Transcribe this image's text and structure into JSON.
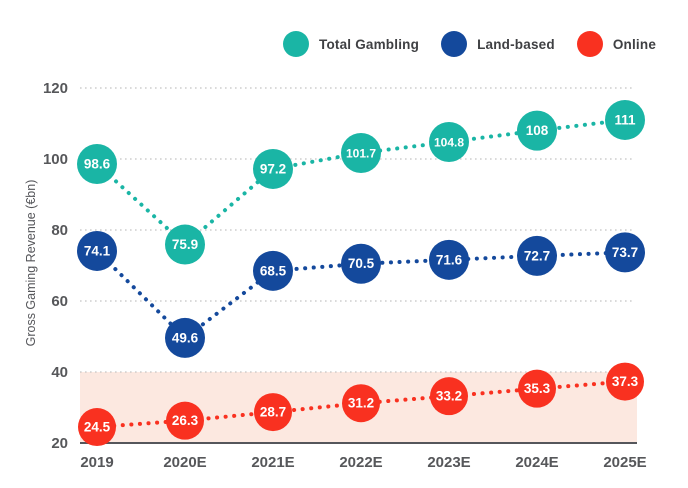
{
  "chart_data": {
    "type": "line",
    "title": "",
    "xlabel": "",
    "ylabel": "Gross Gaming Revenue (€bn)",
    "categories": [
      "2019",
      "2020E",
      "2021E",
      "2022E",
      "2023E",
      "2024E",
      "2025E"
    ],
    "series": [
      {
        "name": "Total Gambling",
        "color": "#1ab5a5",
        "values": [
          98.6,
          75.9,
          97.2,
          101.7,
          104.8,
          108,
          111
        ]
      },
      {
        "name": "Land-based",
        "color": "#14499c",
        "values": [
          74.1,
          49.6,
          68.5,
          70.5,
          71.6,
          72.7,
          73.7
        ]
      },
      {
        "name": "Online",
        "color": "#f93120",
        "values": [
          24.5,
          26.3,
          28.7,
          31.2,
          33.2,
          35.3,
          37.3
        ]
      }
    ],
    "ylim": [
      20,
      120
    ],
    "yticks": [
      20,
      40,
      60,
      80,
      100,
      120
    ],
    "grid": "horizontal-dotted",
    "line_style": "dotted-with-labeled-point-bubbles",
    "legend_position": "top-center",
    "highlight_band": {
      "series": "Online",
      "from": 20,
      "to": 40,
      "color": "#fce8e0"
    },
    "colors": {
      "axis_text": "#56575a",
      "grid_line": "#c4c4c4",
      "baseline": "#55565b",
      "point_label_text": "#ffffff"
    }
  }
}
